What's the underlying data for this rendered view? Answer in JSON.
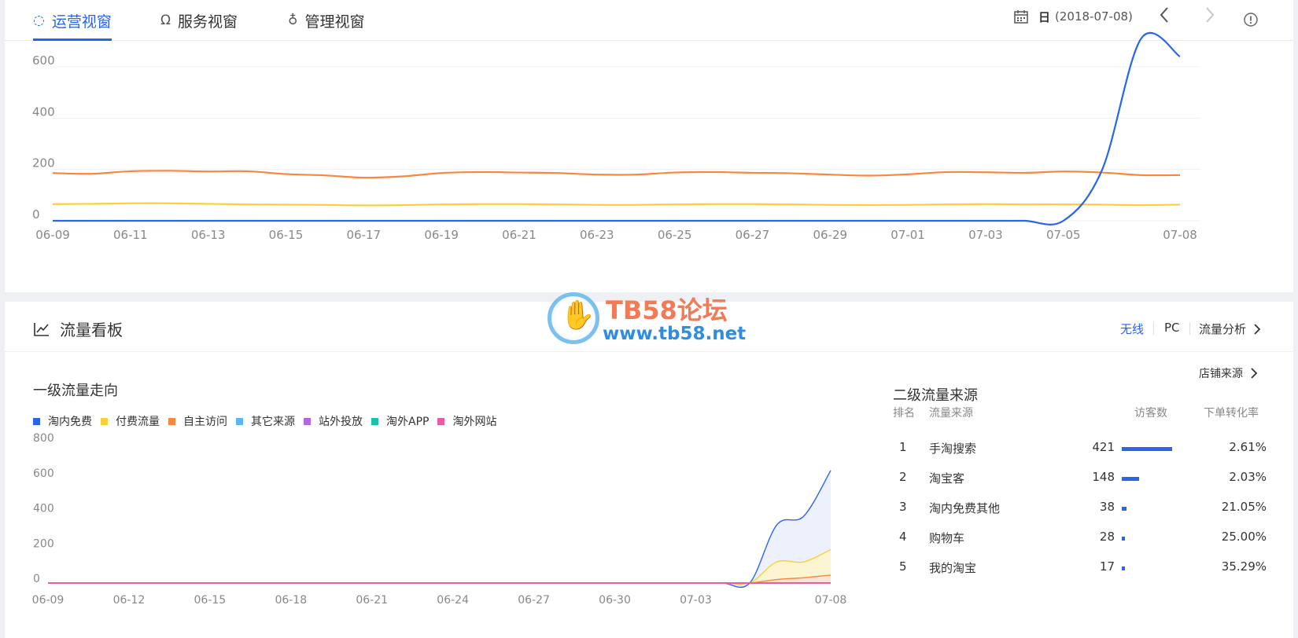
{
  "nav": {
    "tabs": [
      {
        "label": "运营视窗",
        "icon": "loop-icon",
        "active": true
      },
      {
        "label": "服务视窗",
        "icon": "headset-icon",
        "active": false
      },
      {
        "label": "管理视窗",
        "icon": "tie-icon",
        "active": false
      }
    ],
    "date_unit": "日",
    "date_value": "(2018-07-08)",
    "prev_icon": "chevron-left-icon",
    "next_icon": "chevron-right-icon",
    "info_icon": "alert-circle-icon"
  },
  "colors": {
    "accent": "#2a64e8",
    "orange": "#f7883f",
    "yellow": "#f9cf3a",
    "light_blue": "#5cb8f5",
    "purple": "#b366e0",
    "teal": "#15c4a9",
    "pink": "#ea5ba4"
  },
  "chart_data": [
    {
      "type": "line",
      "x": [
        "06-09",
        "06-10",
        "06-11",
        "06-12",
        "06-13",
        "06-14",
        "06-15",
        "06-16",
        "06-17",
        "06-18",
        "06-19",
        "06-20",
        "06-21",
        "06-22",
        "06-23",
        "06-24",
        "06-25",
        "06-26",
        "06-27",
        "06-28",
        "06-29",
        "06-30",
        "07-01",
        "07-02",
        "07-03",
        "07-04",
        "07-05",
        "07-06",
        "07-07",
        "07-08"
      ],
      "x_tick_labels": [
        "06-09",
        "06-11",
        "06-13",
        "06-15",
        "06-17",
        "06-19",
        "06-21",
        "06-23",
        "06-25",
        "06-27",
        "06-29",
        "07-01",
        "07-03",
        "07-05",
        "07-08"
      ],
      "y_tick_labels": [
        "0",
        "200",
        "400",
        "600"
      ],
      "ylim": [
        0,
        650
      ],
      "series": [
        {
          "color": "#2a64e8",
          "values": [
            0,
            0,
            0,
            0,
            0,
            0,
            0,
            0,
            0,
            0,
            0,
            0,
            0,
            0,
            0,
            0,
            0,
            0,
            0,
            0,
            0,
            0,
            0,
            0,
            0,
            0,
            0,
            200,
            710,
            640
          ]
        },
        {
          "color": "#f7883f",
          "values": [
            186,
            183,
            193,
            195,
            192,
            193,
            182,
            177,
            168,
            173,
            186,
            190,
            188,
            186,
            180,
            180,
            188,
            190,
            187,
            185,
            180,
            176,
            181,
            190,
            189,
            187,
            192,
            188,
            178,
            178
          ]
        },
        {
          "color": "#f9cf3a",
          "values": [
            65,
            66,
            68,
            68,
            66,
            64,
            63,
            62,
            60,
            61,
            64,
            65,
            65,
            64,
            62,
            62,
            64,
            65,
            65,
            64,
            62,
            61,
            62,
            64,
            65,
            64,
            64,
            63,
            61,
            63
          ]
        }
      ]
    },
    {
      "type": "area",
      "title": "一级流量走向",
      "x": [
        "06-09",
        "06-10",
        "06-11",
        "06-12",
        "06-13",
        "06-14",
        "06-15",
        "06-16",
        "06-17",
        "06-18",
        "06-19",
        "06-20",
        "06-21",
        "06-22",
        "06-23",
        "06-24",
        "06-25",
        "06-26",
        "06-27",
        "06-28",
        "06-29",
        "06-30",
        "07-01",
        "07-02",
        "07-03",
        "07-04",
        "07-05",
        "07-06",
        "07-07",
        "07-08"
      ],
      "x_tick_labels": [
        "06-09",
        "06-12",
        "06-15",
        "06-18",
        "06-21",
        "06-24",
        "06-27",
        "06-30",
        "07-03",
        "07-08"
      ],
      "y_tick_labels": [
        "0",
        "200",
        "400",
        "600",
        "800"
      ],
      "ylim": [
        0,
        800
      ],
      "legend": [
        {
          "name": "淘内免费",
          "color": "#2a64e8"
        },
        {
          "name": "付费流量",
          "color": "#f9cf3a"
        },
        {
          "name": "自主访问",
          "color": "#f7883f"
        },
        {
          "name": "其它来源",
          "color": "#5cb8f5"
        },
        {
          "name": "站外投放",
          "color": "#b366e0"
        },
        {
          "name": "淘外APP",
          "color": "#15c4a9"
        },
        {
          "name": "淘外网站",
          "color": "#ea5ba4"
        }
      ],
      "series": [
        {
          "name": "淘内免费",
          "color": "#2a64e8",
          "values": [
            0,
            0,
            0,
            0,
            0,
            0,
            0,
            0,
            0,
            0,
            0,
            0,
            0,
            0,
            0,
            0,
            0,
            0,
            0,
            0,
            0,
            0,
            0,
            0,
            0,
            0,
            0,
            330,
            380,
            640
          ]
        },
        {
          "name": "付费流量",
          "color": "#f9cf3a",
          "values": [
            0,
            0,
            0,
            0,
            0,
            0,
            0,
            0,
            0,
            0,
            0,
            0,
            0,
            0,
            0,
            0,
            0,
            0,
            0,
            0,
            0,
            0,
            0,
            0,
            0,
            0,
            0,
            120,
            120,
            190
          ]
        },
        {
          "name": "自主访问",
          "color": "#f7883f",
          "values": [
            0,
            0,
            0,
            0,
            0,
            0,
            0,
            0,
            0,
            0,
            0,
            0,
            0,
            0,
            0,
            0,
            0,
            0,
            0,
            0,
            0,
            0,
            0,
            0,
            0,
            0,
            0,
            20,
            30,
            45
          ]
        },
        {
          "name": "淘外网站",
          "color": "#ea5ba4",
          "values": [
            0,
            0,
            0,
            0,
            0,
            0,
            0,
            0,
            0,
            0,
            0,
            0,
            0,
            0,
            0,
            0,
            0,
            0,
            0,
            0,
            0,
            0,
            0,
            0,
            0,
            0,
            0,
            0,
            0,
            0
          ]
        }
      ]
    }
  ],
  "board": {
    "title": "流量看板",
    "icon": "line-chart-icon",
    "tab_wireless": "无线",
    "tab_pc": "PC",
    "analysis_link": "流量分析"
  },
  "secondary": {
    "title": "二级流量来源",
    "link": "店铺来源",
    "headers": [
      "排名",
      "流量来源",
      "访客数",
      "下单转化率"
    ],
    "rows": [
      {
        "rank": "1",
        "source": "手淘搜索",
        "visitors": "421",
        "rate": "2.61%",
        "share": 1.0
      },
      {
        "rank": "2",
        "source": "淘宝客",
        "visitors": "148",
        "rate": "2.03%",
        "share": 0.35
      },
      {
        "rank": "3",
        "source": "淘内免费其他",
        "visitors": "38",
        "rate": "21.05%",
        "share": 0.09
      },
      {
        "rank": "4",
        "source": "购物车",
        "visitors": "28",
        "rate": "25.00%",
        "share": 0.07
      },
      {
        "rank": "5",
        "source": "我的淘宝",
        "visitors": "17",
        "rate": "35.29%",
        "share": 0.04
      }
    ]
  },
  "watermark": {
    "line1": "TB58论坛",
    "line2": "www.tb58.net"
  }
}
